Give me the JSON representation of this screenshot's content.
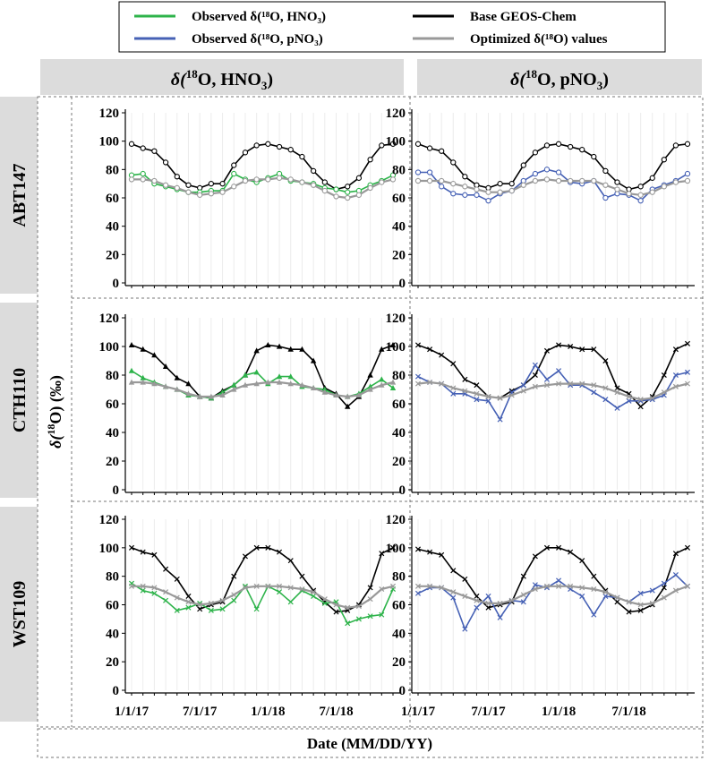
{
  "legend": {
    "items": [
      {
        "label": "Observed δ(¹⁸O, HNO₃)",
        "color": "#2db34a"
      },
      {
        "label": "Base GEOS-Chem",
        "color": "#000000"
      },
      {
        "label": "Observed δ(¹⁸O, pNO₃)",
        "color": "#4661b5"
      },
      {
        "label": "Optimized δ(¹⁸O) values",
        "color": "#999999"
      }
    ]
  },
  "columns": [
    {
      "title_pre": "δ(",
      "title_sup": "18",
      "title_mid": "O, HNO",
      "title_sub": "3",
      "title_post": ")"
    },
    {
      "title_pre": "δ(",
      "title_sup": "18",
      "title_mid": "O, pNO",
      "title_sub": "3",
      "title_post": ")"
    }
  ],
  "sites": [
    "ABT147",
    "CTH110",
    "WST109"
  ],
  "ylabel": {
    "pre": "δ(",
    "sup": "18",
    "post": "O) (‰)"
  },
  "xlabel": "Date (MM/DD/YY)",
  "yticks": [
    0,
    20,
    40,
    60,
    80,
    100,
    120
  ],
  "xticks": [
    "1/1/17",
    "7/1/17",
    "1/1/18",
    "7/1/18"
  ],
  "chart_data": {
    "type": "line",
    "x": [
      "Jan-17",
      "Feb-17",
      "Mar-17",
      "Apr-17",
      "May-17",
      "Jun-17",
      "Jul-17",
      "Aug-17",
      "Sep-17",
      "Oct-17",
      "Nov-17",
      "Dec-17",
      "Jan-18",
      "Feb-18",
      "Mar-18",
      "Apr-18",
      "May-18",
      "Jun-18",
      "Jul-18",
      "Aug-18",
      "Sep-18",
      "Oct-18",
      "Nov-18",
      "Dec-18"
    ],
    "ylim": [
      0,
      120
    ],
    "colors": {
      "obs_hno3": "#2db34a",
      "obs_pno3": "#4661b5",
      "base": "#000000",
      "opt": "#999999"
    },
    "panels": [
      {
        "site": "ABT147",
        "column": "HNO3",
        "marker": "circle",
        "observed_key": "obs_hno3",
        "series": [
          {
            "name": "Base GEOS-Chem",
            "key": "base",
            "values": [
              98,
              95,
              93,
              85,
              75,
              69,
              67,
              70,
              70,
              83,
              92,
              97,
              98,
              96,
              94,
              89,
              79,
              71,
              66,
              68,
              74,
              87,
              97,
              98
            ]
          },
          {
            "name": "Observed δ(¹⁸O, HNO₃)",
            "key": "obs_hno3",
            "values": [
              76,
              77,
              70,
              68,
              66,
              64,
              64,
              65,
              65,
              77,
              73,
              71,
              74,
              77,
              72,
              71,
              70,
              67,
              66,
              64,
              65,
              69,
              72,
              76
            ]
          },
          {
            "name": "Optimized δ(¹⁸O) values",
            "key": "opt",
            "values": [
              73,
              73,
              72,
              69,
              67,
              64,
              62,
              63,
              64,
              68,
              72,
              73,
              73,
              74,
              73,
              71,
              69,
              65,
              61,
              60,
              62,
              67,
              71,
              73
            ]
          }
        ]
      },
      {
        "site": "ABT147",
        "column": "pNO3",
        "marker": "circle",
        "observed_key": "obs_pno3",
        "series": [
          {
            "name": "Base GEOS-Chem",
            "key": "base",
            "values": [
              98,
              95,
              93,
              85,
              75,
              69,
              67,
              70,
              70,
              83,
              92,
              97,
              98,
              96,
              94,
              89,
              79,
              71,
              66,
              68,
              74,
              87,
              97,
              98
            ]
          },
          {
            "name": "Observed δ(¹⁸O, pNO₃)",
            "key": "obs_pno3",
            "values": [
              78,
              78,
              68,
              63,
              62,
              62,
              58,
              63,
              65,
              72,
              77,
              80,
              78,
              71,
              70,
              72,
              60,
              63,
              62,
              58,
              66,
              69,
              72,
              77
            ]
          },
          {
            "name": "Optimized δ(¹⁸O) values",
            "key": "opt",
            "values": [
              72,
              72,
              72,
              70,
              68,
              66,
              64,
              64,
              65,
              69,
              72,
              73,
              72,
              72,
              72,
              72,
              69,
              66,
              63,
              62,
              64,
              68,
              71,
              72
            ]
          }
        ]
      },
      {
        "site": "CTH110",
        "column": "HNO3",
        "marker": "triangle",
        "observed_key": "obs_hno3",
        "series": [
          {
            "name": "Base GEOS-Chem",
            "key": "base",
            "values": [
              101,
              98,
              94,
              86,
              78,
              74,
              65,
              64,
              69,
              73,
              80,
              97,
              101,
              100,
              98,
              98,
              90,
              71,
              67,
              58,
              65,
              80,
              98,
              101
            ]
          },
          {
            "name": "Observed δ(¹⁸O, HNO₃)",
            "key": "obs_hno3",
            "values": [
              83,
              78,
              75,
              72,
              70,
              66,
              65,
              64,
              68,
              73,
              80,
              82,
              74,
              79,
              79,
              72,
              71,
              70,
              66,
              65,
              67,
              72,
              77,
              71
            ]
          },
          {
            "name": "Optimized δ(¹⁸O) values",
            "key": "opt",
            "values": [
              75,
              75,
              74,
              72,
              70,
              67,
              65,
              65,
              66,
              70,
              73,
              74,
              75,
              75,
              74,
              73,
              71,
              68,
              66,
              65,
              66,
              70,
              73,
              75
            ]
          }
        ]
      },
      {
        "site": "CTH110",
        "column": "pNO3",
        "marker": "x",
        "observed_key": "obs_pno3",
        "series": [
          {
            "name": "Base GEOS-Chem",
            "key": "base",
            "values": [
              101,
              98,
              94,
              88,
              77,
              73,
              65,
              64,
              69,
              73,
              80,
              97,
              101,
              100,
              98,
              98,
              90,
              71,
              67,
              58,
              65,
              80,
              98,
              102
            ]
          },
          {
            "name": "Observed δ(¹⁸O, pNO₃)",
            "key": "obs_pno3",
            "values": [
              79,
              75,
              74,
              67,
              67,
              63,
              62,
              49,
              68,
              73,
              87,
              77,
              83,
              73,
              73,
              68,
              63,
              57,
              62,
              62,
              63,
              66,
              80,
              82
            ]
          },
          {
            "name": "Optimized δ(¹⁸O) values",
            "key": "opt",
            "values": [
              74,
              75,
              74,
              71,
              69,
              67,
              65,
              64,
              66,
              69,
              72,
              73,
              74,
              74,
              74,
              73,
              71,
              68,
              65,
              63,
              64,
              68,
              72,
              74
            ]
          }
        ]
      },
      {
        "site": "WST109",
        "column": "HNO3",
        "marker": "x",
        "observed_key": "obs_hno3",
        "series": [
          {
            "name": "Base GEOS-Chem",
            "key": "base",
            "values": [
              100,
              97,
              95,
              85,
              78,
              66,
              57,
              60,
              62,
              80,
              94,
              100,
              100,
              97,
              91,
              80,
              70,
              62,
              55,
              56,
              60,
              72,
              96,
              100
            ]
          },
          {
            "name": "Observed δ(¹⁸O, HNO₃)",
            "key": "obs_hno3",
            "values": [
              75,
              70,
              68,
              63,
              56,
              58,
              61,
              56,
              57,
              63,
              73,
              57,
              73,
              69,
              62,
              70,
              66,
              61,
              62,
              47,
              50,
              52,
              53,
              71
            ]
          },
          {
            "name": "Optimized δ(¹⁸O) values",
            "key": "opt",
            "values": [
              73,
              73,
              72,
              69,
              65,
              62,
              60,
              61,
              63,
              67,
              72,
              73,
              73,
              73,
              72,
              71,
              69,
              64,
              60,
              58,
              59,
              64,
              71,
              73
            ]
          }
        ]
      },
      {
        "site": "WST109",
        "column": "pNO3",
        "marker": "x",
        "observed_key": "obs_pno3",
        "series": [
          {
            "name": "Base GEOS-Chem",
            "key": "base",
            "values": [
              99,
              97,
              95,
              84,
              78,
              66,
              58,
              60,
              62,
              80,
              94,
              100,
              100,
              97,
              91,
              80,
              70,
              62,
              55,
              56,
              60,
              72,
              96,
              100
            ]
          },
          {
            "name": "Observed δ(¹⁸O, pNO₃)",
            "key": "obs_pno3",
            "values": [
              68,
              72,
              72,
              65,
              43,
              58,
              66,
              51,
              63,
              62,
              74,
              72,
              77,
              71,
              66,
              53,
              66,
              65,
              62,
              68,
              70,
              75,
              81,
              73
            ]
          },
          {
            "name": "Optimized δ(¹⁸O) values",
            "key": "opt",
            "values": [
              73,
              73,
              72,
              69,
              66,
              63,
              61,
              61,
              63,
              67,
              71,
              73,
              73,
              73,
              72,
              71,
              69,
              65,
              62,
              60,
              61,
              65,
              70,
              73
            ]
          }
        ]
      }
    ]
  }
}
